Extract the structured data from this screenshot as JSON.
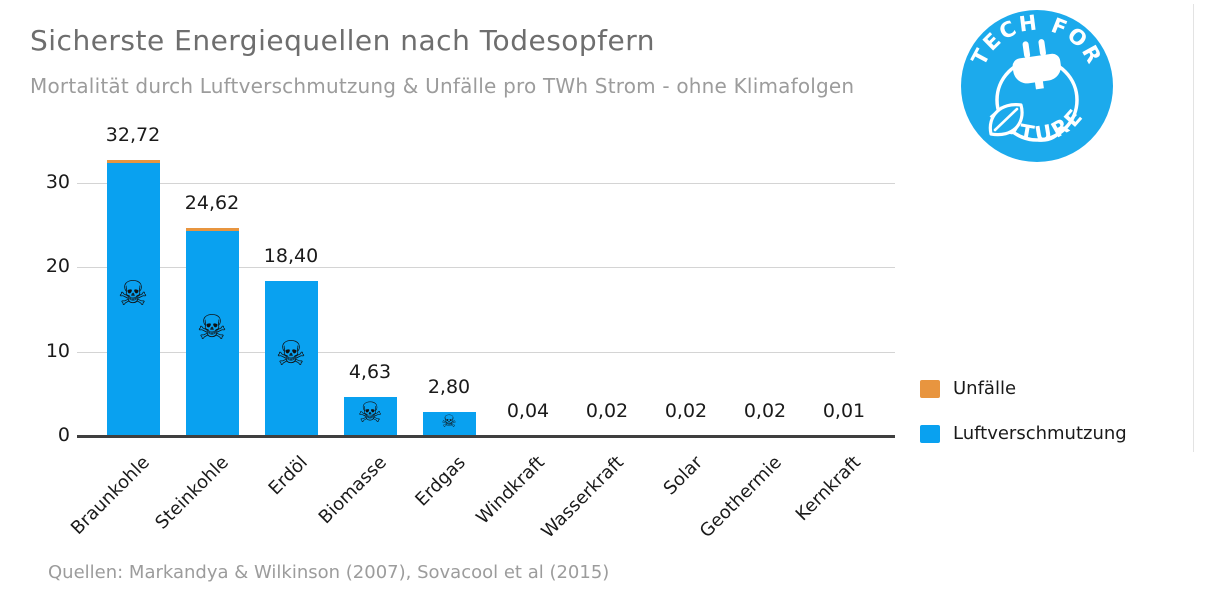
{
  "header": {
    "title": "Sicherste Energiequellen nach Todesopfern",
    "subtitle": "Mortalität durch Luftverschmutzung & Unfälle pro TWh Strom - ohne Klimafolgen"
  },
  "logo": {
    "arc_top": "TECH FOR",
    "arc_bottom": "FUTURE",
    "color": "#1caaec"
  },
  "source_note": "Quellen: Markandya & Wilkinson (2007), Sovacool et al (2015)",
  "chart_data": {
    "type": "bar",
    "stacked": true,
    "title": "Sicherste Energiequellen nach Todesopfern",
    "subtitle": "Mortalität durch Luftverschmutzung & Unfälle pro TWh Strom - ohne Klimafolgen",
    "categories": [
      "Braunkohle",
      "Steinkohle",
      "Erdöl",
      "Biomasse",
      "Erdgas",
      "Windkraft",
      "Wasserkraft",
      "Solar",
      "Geothermie",
      "Kernkraft"
    ],
    "totals": [
      32.72,
      24.62,
      18.4,
      4.63,
      2.8,
      0.04,
      0.02,
      0.02,
      0.02,
      0.01
    ],
    "value_labels": [
      "32,72",
      "24,62",
      "18,40",
      "4,63",
      "2,80",
      "0,04",
      "0,02",
      "0,02",
      "0,02",
      "0,01"
    ],
    "series": [
      {
        "name": "Unfälle",
        "color": "#e8953f",
        "values": [
          0.45,
          0.35,
          0.0,
          0.0,
          0.0,
          0.02,
          0.01,
          0.01,
          0.01,
          0.005
        ]
      },
      {
        "name": "Luftverschmutzung",
        "color": "#09a1f0",
        "values": [
          32.27,
          24.27,
          18.4,
          4.63,
          2.8,
          0.02,
          0.01,
          0.01,
          0.01,
          0.005
        ]
      }
    ],
    "skull_bars": [
      true,
      true,
      true,
      true,
      true,
      false,
      false,
      false,
      false,
      false
    ],
    "skull_icon": "☠",
    "yticks": [
      "0",
      "10",
      "20",
      "30"
    ],
    "ytick_values": [
      0,
      10,
      20,
      30
    ],
    "ylim": [
      0,
      34.6
    ],
    "grid": "horizontal",
    "legend": {
      "position": "right",
      "entries": [
        {
          "label": "Unfälle",
          "color": "#e8953f"
        },
        {
          "label": "Luftverschmutzung",
          "color": "#09a1f0"
        }
      ]
    }
  }
}
